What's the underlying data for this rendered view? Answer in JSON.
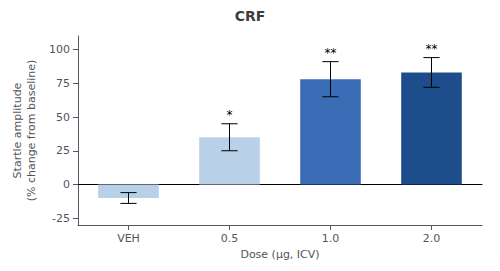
{
  "chart_data": {
    "type": "bar",
    "title": "CRF",
    "xlabel": "Dose (μg, ICV)",
    "ylabel": "Startle amplitude\n(% change from baseline)",
    "categories": [
      "VEH",
      "0.5",
      "1.0",
      "2.0"
    ],
    "values": [
      -10,
      35,
      78,
      83
    ],
    "errors": [
      4,
      10,
      13,
      11
    ],
    "significance": [
      null,
      "*",
      "**",
      "**"
    ],
    "colors": [
      "#b8d0e8",
      "#b8d0e8",
      "#3a6db5",
      "#1e4d8c"
    ],
    "ylim": [
      -30,
      110
    ],
    "yticks": [
      -25,
      0,
      25,
      50,
      75,
      100
    ],
    "grid": false
  }
}
